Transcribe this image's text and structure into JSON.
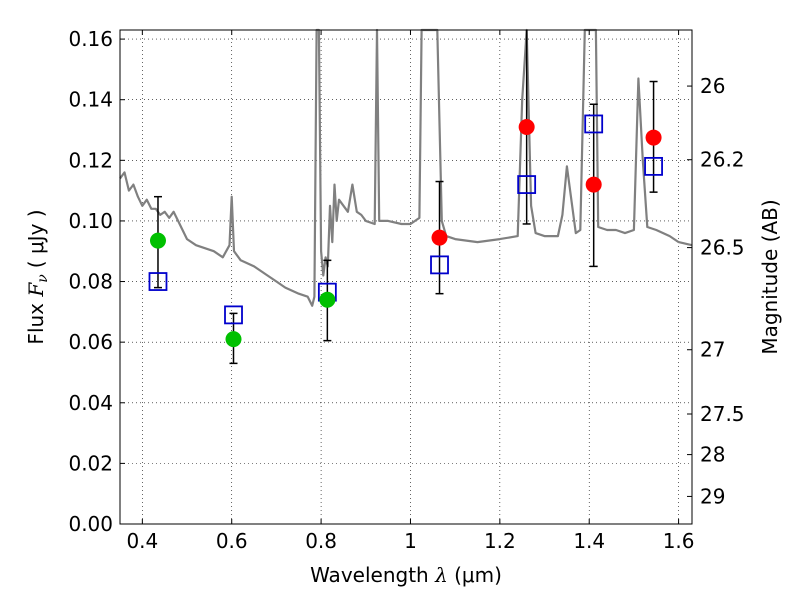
{
  "chart_data": {
    "type": "scatter",
    "title": "",
    "xlabel": {
      "prefix": "Wavelength ",
      "symbol": "λ",
      "unit": " (μm)"
    },
    "ylabel": {
      "prefix": "Flux ",
      "symbol": "F",
      "sub": "ν",
      "unit": "( μJy )"
    },
    "y2label": "Magnitude (AB)",
    "xlim": [
      0.35,
      1.63
    ],
    "ylim": [
      0.0,
      0.163
    ],
    "grid": true,
    "x_ticks": [
      0.4,
      0.6,
      0.8,
      1.0,
      1.2,
      1.4,
      1.6
    ],
    "x_tick_labels": [
      "0.4",
      "0.6",
      "0.8",
      "1",
      "1.2",
      "1.4",
      "1.6"
    ],
    "y_ticks": [
      0.0,
      0.02,
      0.04,
      0.06,
      0.08,
      0.1,
      0.12,
      0.14,
      0.16
    ],
    "y_tick_labels": [
      "0.00",
      "0.02",
      "0.04",
      "0.06",
      "0.08",
      "0.10",
      "0.12",
      "0.14",
      "0.16"
    ],
    "mag_ticks": [
      {
        "label": "26",
        "flux": 0.1445
      },
      {
        "label": "26.2",
        "flux": 0.1202
      },
      {
        "label": "26.5",
        "flux": 0.0912
      },
      {
        "label": "27",
        "flux": 0.0575
      },
      {
        "label": "27.5",
        "flux": 0.0363
      },
      {
        "label": "28",
        "flux": 0.0229
      },
      {
        "label": "29",
        "flux": 0.0091
      }
    ],
    "colors": {
      "spectrum": "#808080",
      "green_points": "#00c000",
      "red_points": "#ff0000",
      "model_squares": "#0000cc",
      "errorbars": "#000000"
    },
    "series": [
      {
        "name": "model spectrum",
        "kind": "line",
        "x": [
          0.35,
          0.36,
          0.37,
          0.38,
          0.39,
          0.4,
          0.41,
          0.42,
          0.43,
          0.44,
          0.45,
          0.46,
          0.47,
          0.48,
          0.5,
          0.52,
          0.54,
          0.56,
          0.58,
          0.595,
          0.6,
          0.605,
          0.62,
          0.65,
          0.68,
          0.7,
          0.72,
          0.75,
          0.77,
          0.78,
          0.785,
          0.79,
          0.795,
          0.8,
          0.805,
          0.81,
          0.815,
          0.82,
          0.825,
          0.83,
          0.835,
          0.84,
          0.86,
          0.87,
          0.88,
          0.89,
          0.9,
          0.92,
          0.925,
          0.93,
          0.95,
          0.98,
          1.0,
          1.02,
          1.025,
          1.03,
          1.04,
          1.045,
          1.05,
          1.06,
          1.07,
          1.08,
          1.1,
          1.15,
          1.2,
          1.24,
          1.25,
          1.26,
          1.27,
          1.28,
          1.3,
          1.33,
          1.34,
          1.35,
          1.37,
          1.38,
          1.39,
          1.4,
          1.41,
          1.415,
          1.42,
          1.44,
          1.46,
          1.48,
          1.5,
          1.51,
          1.52,
          1.53,
          1.55,
          1.58,
          1.6,
          1.63
        ],
        "y": [
          0.114,
          0.116,
          0.11,
          0.112,
          0.108,
          0.105,
          0.107,
          0.104,
          0.104,
          0.102,
          0.103,
          0.101,
          0.103,
          0.1,
          0.094,
          0.092,
          0.091,
          0.09,
          0.088,
          0.092,
          0.108,
          0.09,
          0.087,
          0.085,
          0.082,
          0.08,
          0.078,
          0.076,
          0.075,
          0.072,
          0.075,
          0.163,
          0.163,
          0.09,
          0.082,
          0.088,
          0.085,
          0.105,
          0.093,
          0.112,
          0.1,
          0.107,
          0.103,
          0.112,
          0.103,
          0.102,
          0.1,
          0.099,
          0.163,
          0.1,
          0.1,
          0.099,
          0.099,
          0.101,
          0.163,
          0.163,
          0.163,
          0.163,
          0.163,
          0.163,
          0.1,
          0.095,
          0.094,
          0.093,
          0.094,
          0.095,
          0.14,
          0.163,
          0.105,
          0.096,
          0.095,
          0.095,
          0.102,
          0.118,
          0.096,
          0.097,
          0.163,
          0.163,
          0.163,
          0.163,
          0.098,
          0.097,
          0.097,
          0.096,
          0.097,
          0.147,
          0.12,
          0.098,
          0.097,
          0.095,
          0.093,
          0.092
        ]
      },
      {
        "name": "observed (green)",
        "kind": "points",
        "x": [
          0.435,
          0.604,
          0.814
        ],
        "y": [
          0.0935,
          0.061,
          0.074
        ],
        "err_low": [
          0.078,
          0.053,
          0.0605
        ],
        "err_high": [
          0.108,
          0.0695,
          0.087
        ]
      },
      {
        "name": "observed (red)",
        "kind": "points",
        "x": [
          1.065,
          1.26,
          1.41,
          1.544
        ],
        "y": [
          0.0945,
          0.131,
          0.112,
          0.1275
        ],
        "err_low": [
          0.076,
          0.099,
          0.085,
          0.1095
        ],
        "err_high": [
          0.113,
          0.163,
          0.1385,
          0.146
        ]
      },
      {
        "name": "model photometry",
        "kind": "squares",
        "x": [
          0.435,
          0.604,
          0.814,
          1.065,
          1.26,
          1.41,
          1.544
        ],
        "y": [
          0.08,
          0.069,
          0.0765,
          0.0855,
          0.112,
          0.132,
          0.118
        ]
      }
    ]
  }
}
